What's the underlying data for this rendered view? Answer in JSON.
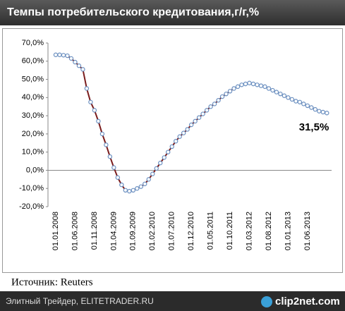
{
  "chart_data": {
    "type": "line",
    "title": "Темпы потребительского кредитования,г/г,%",
    "categories": [
      "01.01.2008",
      null,
      null,
      null,
      null,
      "01.06.2008",
      null,
      null,
      null,
      null,
      "01.11.2008",
      null,
      null,
      null,
      null,
      "01.04.2009",
      null,
      null,
      null,
      null,
      "01.09.2009",
      null,
      null,
      null,
      null,
      "01.02.2010",
      null,
      null,
      null,
      null,
      "01.07.2010",
      null,
      null,
      null,
      null,
      "01.12.2010",
      null,
      null,
      null,
      null,
      "01.05.2011",
      null,
      null,
      null,
      null,
      "01.10.2011",
      null,
      null,
      null,
      null,
      "01.03.2012",
      null,
      null,
      null,
      null,
      "01.08.2012",
      null,
      null,
      null,
      null,
      "01.01.2013",
      null,
      null,
      null,
      null,
      "01.06.2013",
      null,
      null,
      null,
      null,
      null
    ],
    "series": [
      {
        "color": "#7a1c1c",
        "values": [
          63.5,
          63.5,
          63.3,
          63,
          61.5,
          59.5,
          57.5,
          55.5,
          45,
          37.5,
          33,
          27,
          20,
          14,
          7.5,
          1.5,
          -4,
          -8,
          -11,
          -11.5,
          -11,
          -10,
          -9,
          -7.5,
          -5,
          -2,
          1,
          4,
          7,
          10,
          13,
          16,
          18.5,
          20.5,
          22.5,
          25,
          27,
          29,
          31,
          33,
          35,
          36.5,
          38.5,
          40.5,
          42,
          43.5,
          45,
          46,
          47,
          47.5,
          48,
          47.5,
          47,
          46.5,
          46,
          45,
          44,
          43,
          42,
          41,
          40,
          39,
          38,
          37.5,
          36.5,
          35.5,
          34.5,
          33.5,
          32.5,
          32,
          31.5
        ],
        "value_labels": [
          null,
          null,
          null,
          null,
          null,
          null,
          null,
          null,
          null,
          null,
          null,
          null,
          null,
          null,
          null,
          null,
          null,
          null,
          null,
          null,
          null,
          null,
          null,
          null,
          null,
          null,
          null,
          null,
          null,
          null,
          null,
          null,
          null,
          null,
          null,
          null,
          null,
          null,
          null,
          null,
          null,
          null,
          null,
          null,
          null,
          null,
          null,
          null,
          null,
          null,
          null,
          null,
          null,
          null,
          null,
          null,
          null,
          null,
          null,
          null,
          null,
          null,
          null,
          null,
          null,
          null,
          null,
          null,
          null,
          null,
          "31,5%"
        ]
      }
    ],
    "ylim": [
      -20,
      70
    ],
    "yticks": [
      {
        "value": -20,
        "label": "-20,0%"
      },
      {
        "value": -10,
        "label": "-10,0%"
      },
      {
        "value": 0,
        "label": "0,0%"
      },
      {
        "value": 10,
        "label": "10,0%"
      },
      {
        "value": 20,
        "label": "20,0%"
      },
      {
        "value": 30,
        "label": "30,0%"
      },
      {
        "value": 40,
        "label": "40,0%"
      },
      {
        "value": 50,
        "label": "50,0%"
      },
      {
        "value": 60,
        "label": "60,0%"
      },
      {
        "value": 70,
        "label": "70,0%"
      }
    ],
    "grid": false,
    "marker_color": "#6a8fc0"
  },
  "source": "Источник: Reuters",
  "footer": {
    "site": "Элитный Трейдер, ELITETRADER.RU",
    "logo": "clip2net.com"
  }
}
